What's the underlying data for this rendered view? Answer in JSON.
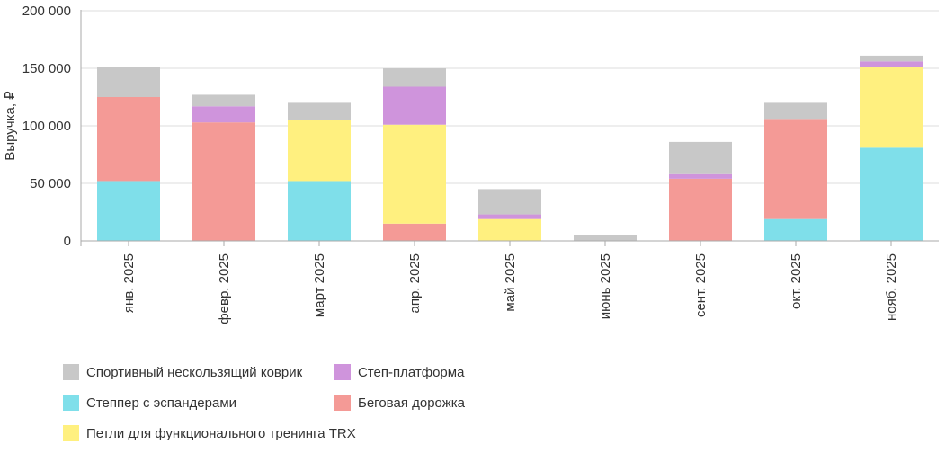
{
  "chart_data": {
    "type": "bar",
    "stacked": true,
    "ylabel": "Выручка, ₽",
    "ylim": [
      0,
      200000
    ],
    "yticks": [
      0,
      50000,
      100000,
      150000,
      200000
    ],
    "ytick_labels": [
      "0",
      "50 000",
      "100 000",
      "150 000",
      "200 000"
    ],
    "grid": true,
    "legend_position": "bottom-left",
    "categories": [
      "янв. 2025",
      "февр. 2025",
      "март 2025",
      "апр. 2025",
      "май 2025",
      "июнь 2025",
      "сент. 2025",
      "окт. 2025",
      "нояб. 2025"
    ],
    "series": [
      {
        "name": "Степпер  с эспандерами",
        "color": "#7fdfea",
        "values": [
          52000,
          0,
          52000,
          0,
          0,
          0,
          0,
          19000,
          81000
        ]
      },
      {
        "name": "Беговая дорожка",
        "color": "#f49a96",
        "values": [
          73000,
          103000,
          0,
          15000,
          0,
          0,
          54000,
          87000,
          0
        ]
      },
      {
        "name": "Петли для функционального тренинга TRX",
        "color": "#fff07f",
        "values": [
          0,
          0,
          53000,
          86000,
          19000,
          0,
          0,
          0,
          70000
        ]
      },
      {
        "name": "Степ-платформа",
        "color": "#cf94dc",
        "values": [
          0,
          14000,
          0,
          33000,
          4000,
          0,
          4000,
          0,
          5000
        ]
      },
      {
        "name": "Спортивный нескользящий коврик",
        "color": "#c8c8c8",
        "values": [
          26000,
          10000,
          15000,
          16000,
          22000,
          5000,
          28000,
          14000,
          5000
        ]
      }
    ],
    "legend_order": [
      4,
      3,
      0,
      1,
      2
    ]
  }
}
